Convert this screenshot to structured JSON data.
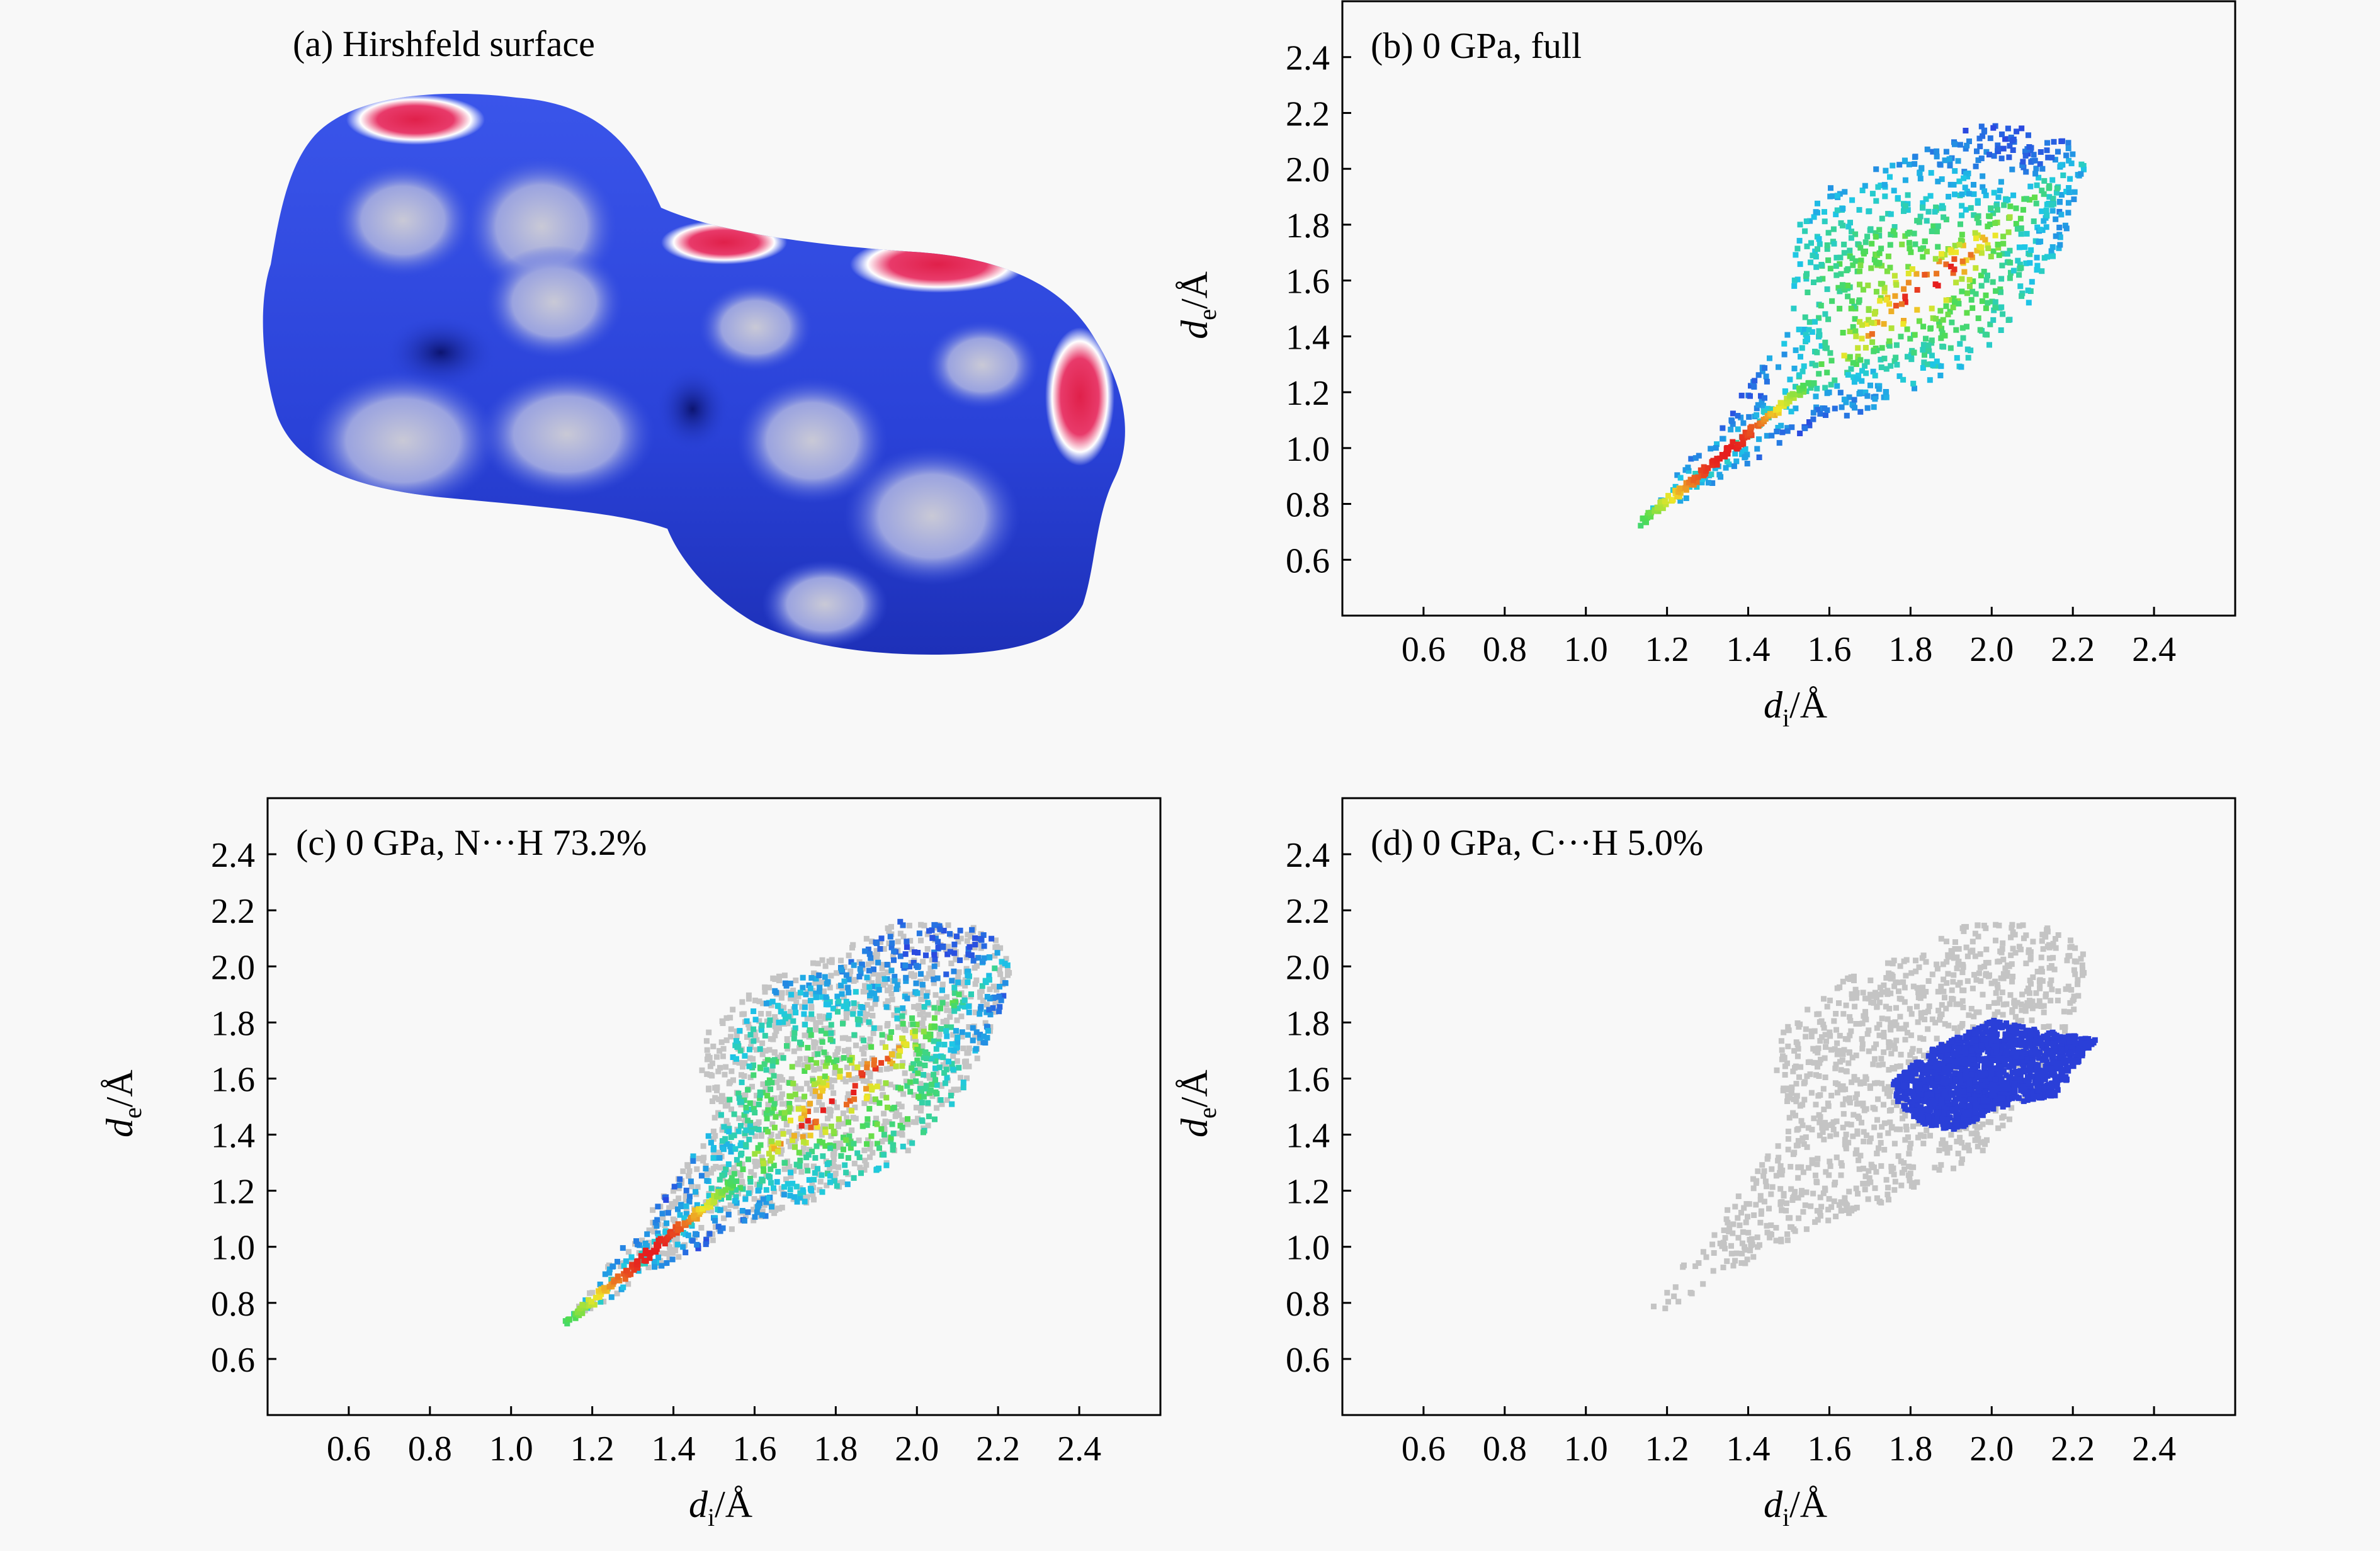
{
  "panel_a": {
    "title": "(a) Hirshfeld surface",
    "description_colors": {
      "surface": "#2b45e0",
      "contact": "#e0204a",
      "neutral": "#ffffff"
    }
  },
  "chart_data": [
    {
      "type": "scatter",
      "title": "(b) 0 GPa, full",
      "xlabel": "d_i/Å",
      "ylabel": "d_e/Å",
      "xlim": [
        0.4,
        2.6
      ],
      "ylim": [
        0.4,
        2.6
      ],
      "xticks": [
        "0.6",
        "0.8",
        "1.0",
        "1.2",
        "1.4",
        "1.6",
        "1.8",
        "2.0",
        "2.2",
        "2.4"
      ],
      "yticks": [
        "0.6",
        "0.8",
        "1.0",
        "1.2",
        "1.4",
        "1.6",
        "1.8",
        "2.0",
        "2.2",
        "2.4"
      ],
      "grid": false,
      "series": [
        {
          "highlight": true,
          "diagonal_tail": {
            "from": [
              1.13,
              0.74
            ],
            "to": [
              1.55,
              1.25
            ]
          },
          "cloud_outline": [
            [
              1.13,
              0.74
            ],
            [
              1.35,
              0.92
            ],
            [
              1.55,
              1.08
            ],
            [
              1.75,
              1.18
            ],
            [
              1.95,
              1.32
            ],
            [
              2.1,
              1.55
            ],
            [
              2.2,
              1.85
            ],
            [
              2.23,
              2.05
            ],
            [
              2.15,
              2.15
            ],
            [
              1.95,
              2.17
            ],
            [
              1.78,
              2.05
            ],
            [
              1.6,
              1.95
            ],
            [
              1.52,
              1.82
            ],
            [
              1.5,
              1.62
            ],
            [
              1.5,
              1.45
            ],
            [
              1.4,
              1.25
            ],
            [
              1.2,
              0.88
            ]
          ],
          "density_peak": [
            1.8,
            1.6
          ]
        }
      ]
    },
    {
      "type": "scatter",
      "title": "(c) 0 GPa, N···H 73.2%",
      "xlabel": "d_i/Å",
      "ylabel": "d_e/Å",
      "xlim": [
        0.4,
        2.6
      ],
      "ylim": [
        0.4,
        2.6
      ],
      "xticks": [
        "0.6",
        "0.8",
        "1.0",
        "1.2",
        "1.4",
        "1.6",
        "1.8",
        "2.0",
        "2.2",
        "2.4"
      ],
      "yticks": [
        "0.6",
        "0.8",
        "1.0",
        "1.2",
        "1.4",
        "1.6",
        "1.8",
        "2.0",
        "2.2",
        "2.4"
      ],
      "grid": false,
      "series": [
        {
          "highlight": false,
          "color": "#c4c4c4",
          "cloud_outline": [
            [
              1.13,
              0.74
            ],
            [
              1.35,
              0.92
            ],
            [
              1.55,
              1.08
            ],
            [
              1.75,
              1.18
            ],
            [
              1.95,
              1.32
            ],
            [
              2.1,
              1.55
            ],
            [
              2.2,
              1.85
            ],
            [
              2.23,
              2.05
            ],
            [
              2.15,
              2.15
            ],
            [
              1.95,
              2.17
            ],
            [
              1.78,
              2.05
            ],
            [
              1.6,
              1.95
            ],
            [
              1.48,
              1.78
            ],
            [
              1.45,
              1.6
            ],
            [
              1.5,
              1.45
            ],
            [
              1.4,
              1.25
            ],
            [
              1.2,
              0.88
            ]
          ]
        },
        {
          "highlight": true,
          "diagonal_tail": {
            "from": [
              1.13,
              0.74
            ],
            "to": [
              1.55,
              1.25
            ]
          },
          "cloud_outline": [
            [
              1.13,
              0.74
            ],
            [
              1.35,
              0.92
            ],
            [
              1.55,
              1.08
            ],
            [
              1.75,
              1.18
            ],
            [
              1.95,
              1.32
            ],
            [
              2.1,
              1.55
            ],
            [
              2.2,
              1.85
            ],
            [
              2.23,
              2.05
            ],
            [
              2.15,
              2.15
            ],
            [
              1.95,
              2.17
            ],
            [
              1.8,
              2.0
            ],
            [
              1.65,
              1.95
            ],
            [
              1.55,
              1.8
            ],
            [
              1.52,
              1.6
            ],
            [
              1.5,
              1.45
            ],
            [
              1.4,
              1.25
            ],
            [
              1.2,
              0.88
            ]
          ],
          "density_peak": [
            1.8,
            1.55
          ]
        }
      ]
    },
    {
      "type": "scatter",
      "title": "(d) 0 GPa, C···H 5.0%",
      "xlabel": "d_i/Å",
      "ylabel": "d_e/Å",
      "xlim": [
        0.4,
        2.6
      ],
      "ylim": [
        0.4,
        2.6
      ],
      "xticks": [
        "0.6",
        "0.8",
        "1.0",
        "1.2",
        "1.4",
        "1.6",
        "1.8",
        "2.0",
        "2.2",
        "2.4"
      ],
      "yticks": [
        "0.6",
        "0.8",
        "1.0",
        "1.2",
        "1.4",
        "1.6",
        "1.8",
        "2.0",
        "2.2",
        "2.4"
      ],
      "grid": false,
      "series": [
        {
          "highlight": false,
          "color": "#c4c4c4",
          "cloud_outline": [
            [
              1.13,
              0.74
            ],
            [
              1.35,
              0.92
            ],
            [
              1.55,
              1.08
            ],
            [
              1.75,
              1.18
            ],
            [
              1.95,
              1.32
            ],
            [
              2.1,
              1.55
            ],
            [
              2.2,
              1.85
            ],
            [
              2.23,
              2.05
            ],
            [
              2.15,
              2.15
            ],
            [
              1.95,
              2.17
            ],
            [
              1.78,
              2.05
            ],
            [
              1.6,
              1.95
            ],
            [
              1.48,
              1.78
            ],
            [
              1.45,
              1.6
            ],
            [
              1.5,
              1.45
            ],
            [
              1.4,
              1.25
            ],
            [
              1.2,
              0.88
            ]
          ]
        },
        {
          "highlight": true,
          "color": "#2a3fd8",
          "cloud_outline": [
            [
              1.75,
              1.6
            ],
            [
              1.85,
              1.72
            ],
            [
              2.0,
              1.82
            ],
            [
              2.12,
              1.78
            ],
            [
              2.25,
              1.75
            ],
            [
              2.15,
              1.55
            ],
            [
              2.0,
              1.5
            ],
            [
              1.9,
              1.42
            ],
            [
              1.82,
              1.45
            ],
            [
              1.76,
              1.52
            ]
          ]
        }
      ]
    }
  ]
}
